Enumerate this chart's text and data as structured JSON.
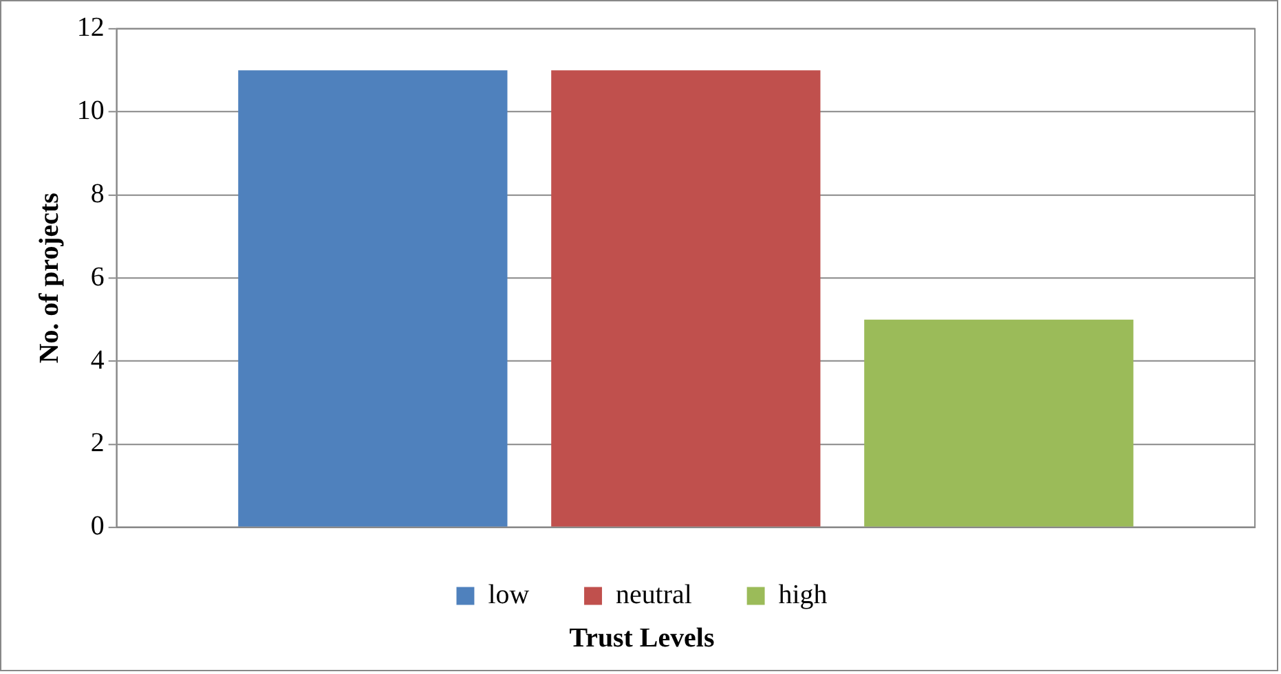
{
  "chart_data": {
    "type": "bar",
    "xlabel": "Trust Levels",
    "ylabel": "No. of projects",
    "categories": [
      null
    ],
    "series": [
      {
        "name": "low",
        "color": "#4f81bd",
        "values": [
          11
        ]
      },
      {
        "name": "neutral",
        "color": "#c0504d",
        "values": [
          11
        ]
      },
      {
        "name": "high",
        "color": "#9bbb59",
        "values": [
          5
        ]
      }
    ],
    "ylim": [
      0,
      12
    ],
    "yticks": [
      0,
      2,
      4,
      6,
      8,
      10,
      12
    ],
    "grid": "y",
    "legend": "bottom"
  }
}
